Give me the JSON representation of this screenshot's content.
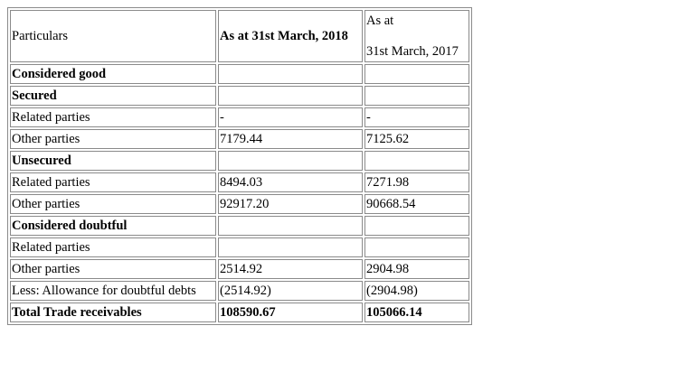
{
  "table": {
    "header": {
      "particulars": "Particulars",
      "col_2018": "As at 31st March, 2018",
      "col_2017_line1": "As at",
      "col_2017_line2": "31st March, 2017"
    },
    "rows": [
      {
        "label": "Considered good",
        "v2018": "",
        "v2017": "",
        "bold": true
      },
      {
        "label": "Secured",
        "v2018": "",
        "v2017": "",
        "bold": true
      },
      {
        "label": "Related parties",
        "v2018": "-",
        "v2017": "-",
        "bold": false
      },
      {
        "label": "Other parties",
        "v2018": "7179.44",
        "v2017": "7125.62",
        "bold": false
      },
      {
        "label": "Unsecured",
        "v2018": "",
        "v2017": "",
        "bold": true
      },
      {
        "label": "Related parties",
        "v2018": "8494.03",
        "v2017": "7271.98",
        "bold": false
      },
      {
        "label": "Other parties",
        "v2018": "92917.20",
        "v2017": "90668.54",
        "bold": false
      },
      {
        "label": "Considered doubtful",
        "v2018": "",
        "v2017": "",
        "bold": true
      },
      {
        "label": "Related parties",
        "v2018": "",
        "v2017": "",
        "bold": false
      },
      {
        "label": "Other parties",
        "v2018": "2514.92",
        "v2017": "2904.98",
        "bold": false
      },
      {
        "label": "Less: Allowance for doubtful debts",
        "v2018": "(2514.92)",
        "v2017": "(2904.98)",
        "bold": false
      },
      {
        "label": "Total Trade receivables",
        "v2018": "108590.67",
        "v2017": "105066.14",
        "bold": true,
        "bold_values": true
      }
    ]
  }
}
